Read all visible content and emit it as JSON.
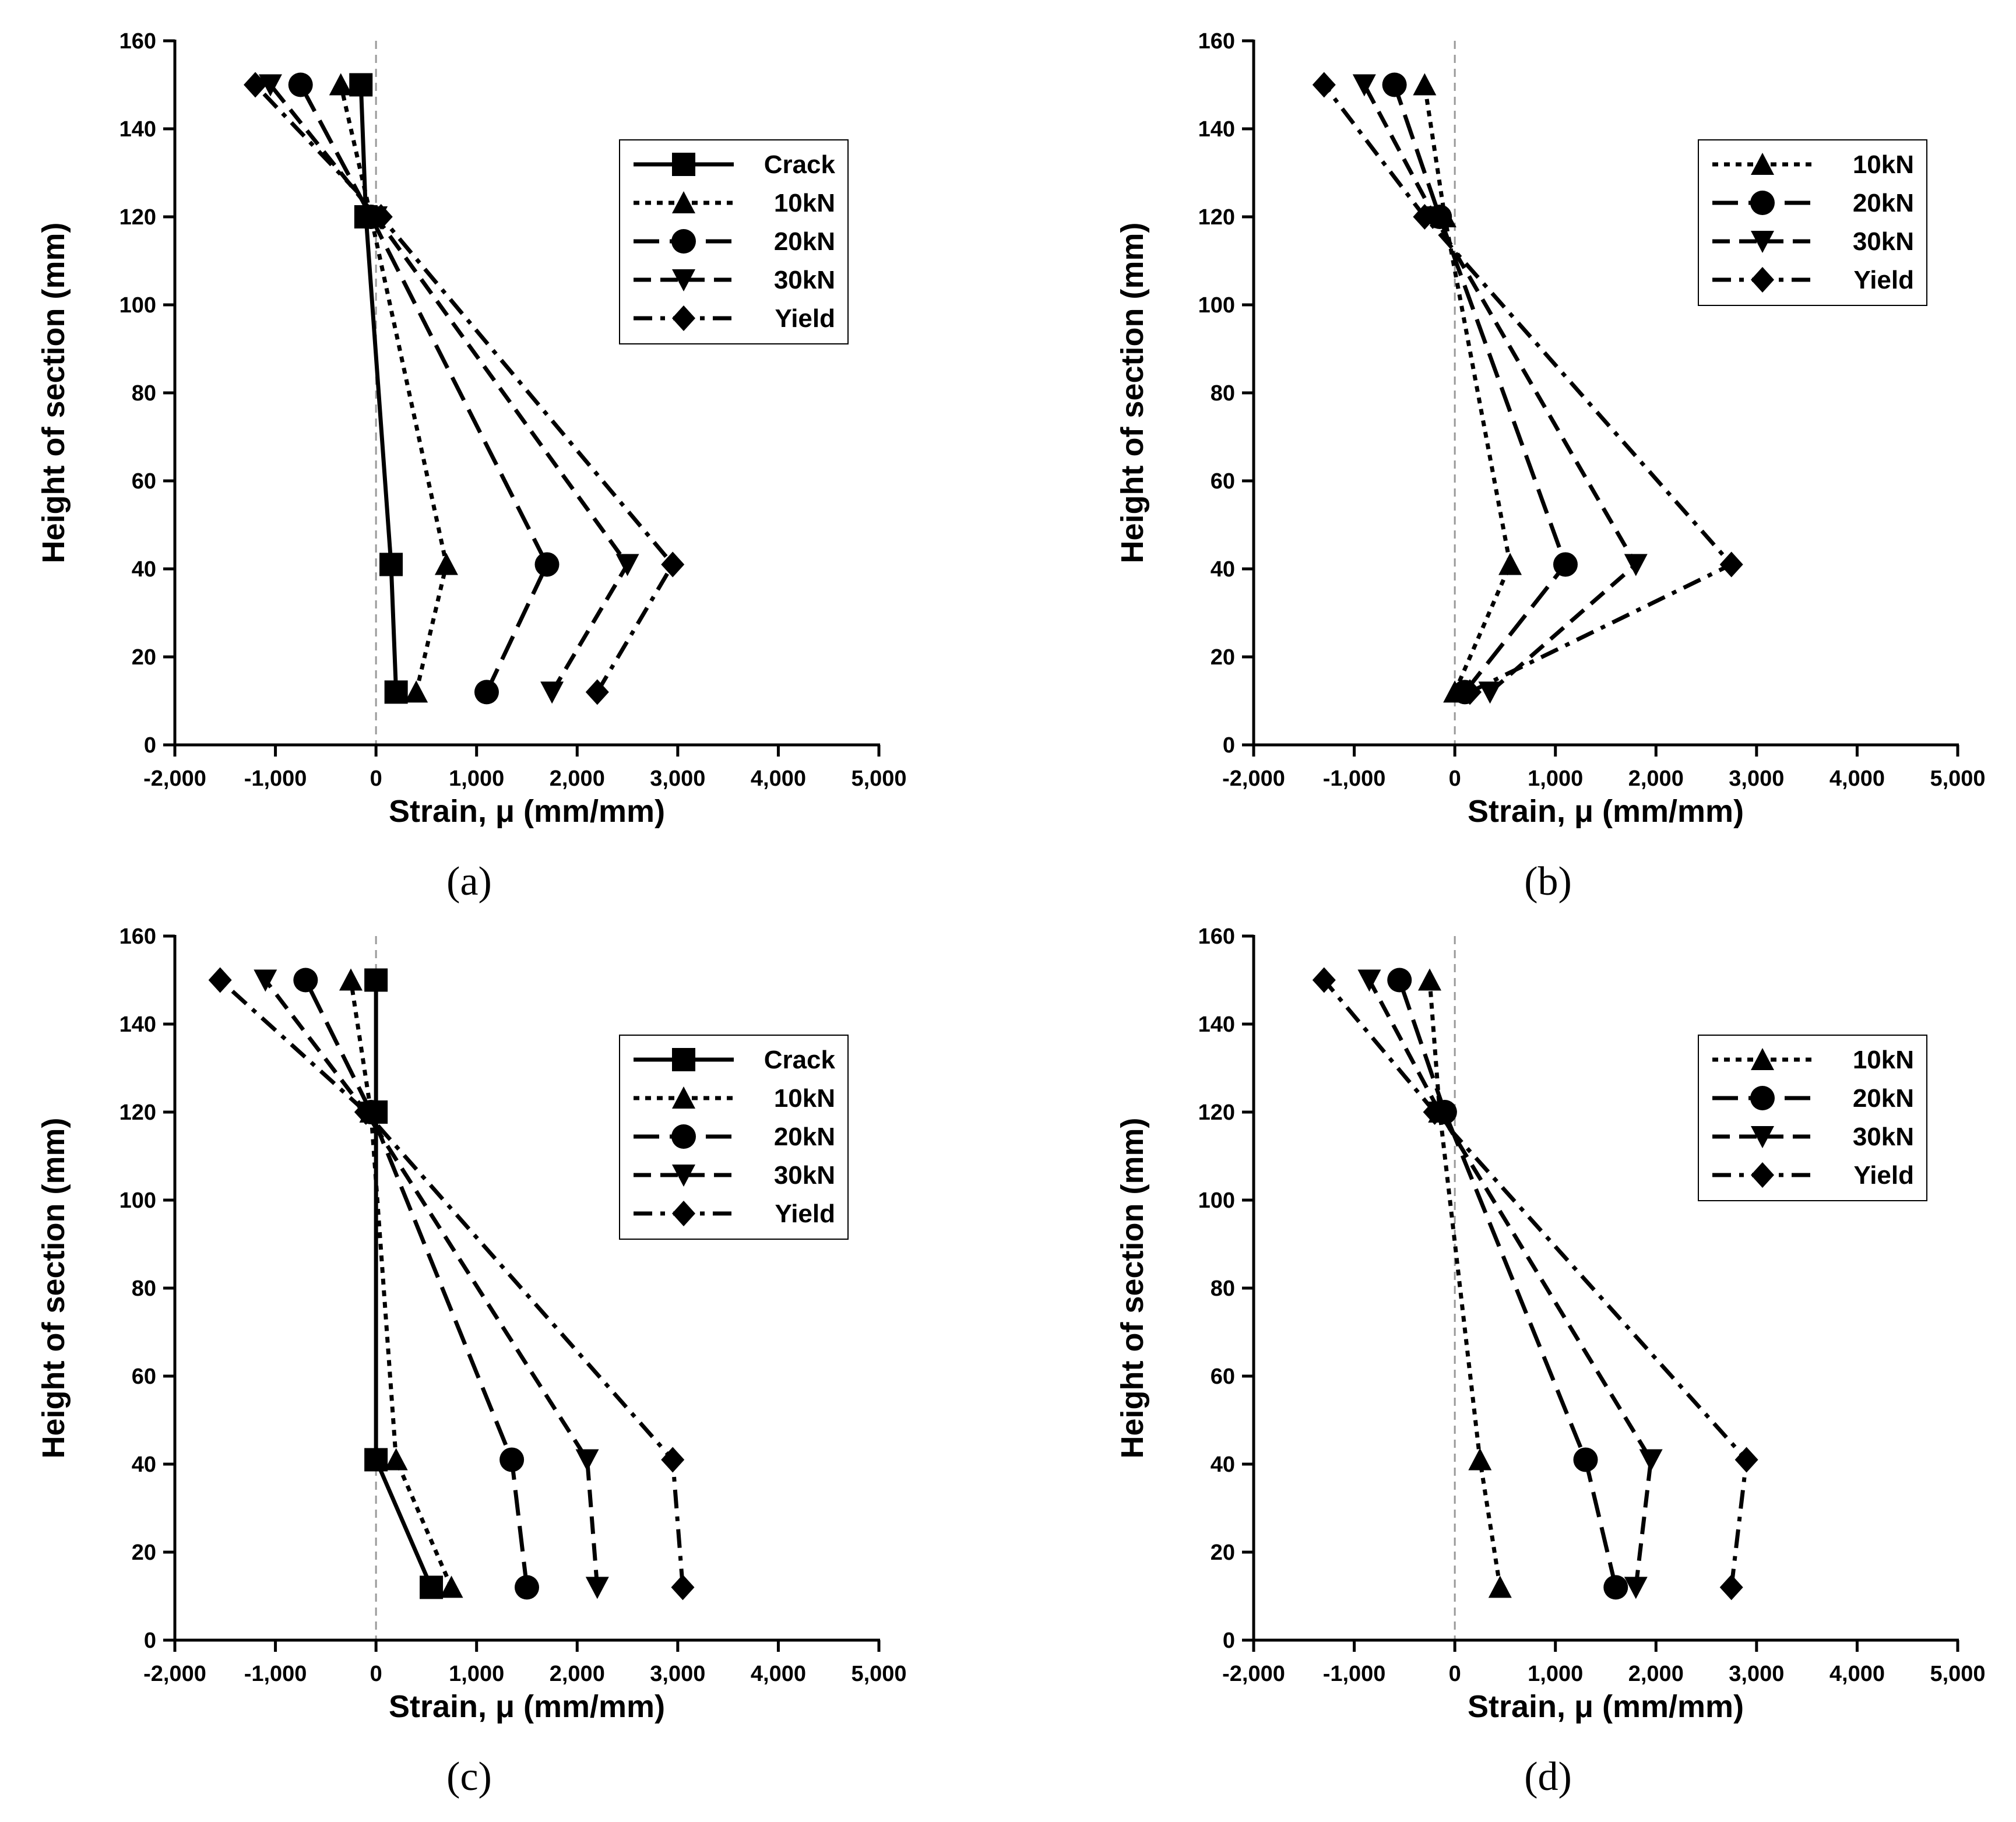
{
  "chart_data": [
    {
      "type": "line",
      "panel_label": "(a)",
      "xlabel": "Strain, μ (mm/mm)",
      "ylabel": "Height of section (mm)",
      "xlim": [
        -2000,
        5000
      ],
      "ylim": [
        0,
        160
      ],
      "xticks": [
        -2000,
        -1000,
        0,
        1000,
        2000,
        3000,
        4000,
        5000
      ],
      "xtick_labels": [
        "-2,000",
        "-1,000",
        "0",
        "1,000",
        "2,000",
        "3,000",
        "4,000",
        "5,000"
      ],
      "yticks": [
        0,
        20,
        40,
        60,
        80,
        100,
        120,
        140,
        160
      ],
      "ytick_labels": [
        "0",
        "20",
        "40",
        "60",
        "80",
        "100",
        "120",
        "140",
        "160"
      ],
      "zero_reference_line": true,
      "legend_position": "top-right",
      "series": [
        {
          "name": "Crack",
          "marker": "square",
          "dash": "solid",
          "x": [
            200,
            150,
            -100,
            -150
          ],
          "y": [
            12,
            41,
            120,
            150
          ]
        },
        {
          "name": "10kN",
          "marker": "triangle-up",
          "dash": "dot",
          "x": [
            400,
            700,
            -50,
            -350
          ],
          "y": [
            12,
            41,
            120,
            150
          ]
        },
        {
          "name": "20kN",
          "marker": "circle",
          "dash": "longdash",
          "x": [
            1100,
            1700,
            -50,
            -750
          ],
          "y": [
            12,
            41,
            120,
            150
          ]
        },
        {
          "name": "30kN",
          "marker": "triangle-down",
          "dash": "dash",
          "x": [
            1750,
            2500,
            0,
            -1050
          ],
          "y": [
            12,
            41,
            120,
            150
          ]
        },
        {
          "name": "Yield",
          "marker": "diamond",
          "dash": "dashdot",
          "x": [
            2200,
            2950,
            50,
            -1200
          ],
          "y": [
            12,
            41,
            120,
            150
          ]
        }
      ]
    },
    {
      "type": "line",
      "panel_label": "(b)",
      "xlabel": "Strain, μ (mm/mm)",
      "ylabel": "Height of section (mm)",
      "xlim": [
        -2000,
        5000
      ],
      "ylim": [
        0,
        160
      ],
      "xticks": [
        -2000,
        -1000,
        0,
        1000,
        2000,
        3000,
        4000,
        5000
      ],
      "xtick_labels": [
        "-2,000",
        "-1,000",
        "0",
        "1,000",
        "2,000",
        "3,000",
        "4,000",
        "5,000"
      ],
      "yticks": [
        0,
        20,
        40,
        60,
        80,
        100,
        120,
        140,
        160
      ],
      "ytick_labels": [
        "0",
        "20",
        "40",
        "60",
        "80",
        "100",
        "120",
        "140",
        "160"
      ],
      "zero_reference_line": true,
      "legend_position": "top-right",
      "series": [
        {
          "name": "10kN",
          "marker": "triangle-up",
          "dash": "dot",
          "x": [
            0,
            550,
            -100,
            -300
          ],
          "y": [
            12,
            41,
            120,
            150
          ]
        },
        {
          "name": "20kN",
          "marker": "circle",
          "dash": "longdash",
          "x": [
            100,
            1100,
            -150,
            -600
          ],
          "y": [
            12,
            41,
            120,
            150
          ]
        },
        {
          "name": "30kN",
          "marker": "triangle-down",
          "dash": "dash",
          "x": [
            350,
            1800,
            -200,
            -900
          ],
          "y": [
            12,
            41,
            120,
            150
          ]
        },
        {
          "name": "Yield",
          "marker": "diamond",
          "dash": "dashdot",
          "x": [
            150,
            2750,
            -300,
            -1300
          ],
          "y": [
            12,
            41,
            120,
            150
          ]
        }
      ]
    },
    {
      "type": "line",
      "panel_label": "(c)",
      "xlabel": "Strain, μ (mm/mm)",
      "ylabel": "Height of section (mm)",
      "xlim": [
        -2000,
        5000
      ],
      "ylim": [
        0,
        160
      ],
      "xticks": [
        -2000,
        -1000,
        0,
        1000,
        2000,
        3000,
        4000,
        5000
      ],
      "xtick_labels": [
        "-2,000",
        "-1,000",
        "0",
        "1,000",
        "2,000",
        "3,000",
        "4,000",
        "5,000"
      ],
      "yticks": [
        0,
        20,
        40,
        60,
        80,
        100,
        120,
        140,
        160
      ],
      "ytick_labels": [
        "0",
        "20",
        "40",
        "60",
        "80",
        "100",
        "120",
        "140",
        "160"
      ],
      "zero_reference_line": true,
      "legend_position": "center-right",
      "series": [
        {
          "name": "Crack",
          "marker": "square",
          "dash": "solid",
          "x": [
            550,
            0,
            0,
            0
          ],
          "y": [
            12,
            41,
            120,
            150
          ]
        },
        {
          "name": "10kN",
          "marker": "triangle-up",
          "dash": "dot",
          "x": [
            750,
            200,
            -50,
            -250
          ],
          "y": [
            12,
            41,
            120,
            150
          ]
        },
        {
          "name": "20kN",
          "marker": "circle",
          "dash": "longdash",
          "x": [
            1500,
            1350,
            -50,
            -700
          ],
          "y": [
            12,
            41,
            120,
            150
          ]
        },
        {
          "name": "30kN",
          "marker": "triangle-down",
          "dash": "dash",
          "x": [
            2200,
            2100,
            -100,
            -1100
          ],
          "y": [
            12,
            41,
            120,
            150
          ]
        },
        {
          "name": "Yield",
          "marker": "diamond",
          "dash": "dashdot",
          "x": [
            3050,
            2950,
            -100,
            -1550
          ],
          "y": [
            12,
            41,
            120,
            150
          ]
        }
      ]
    },
    {
      "type": "line",
      "panel_label": "(d)",
      "xlabel": "Strain, μ (mm/mm)",
      "ylabel": "Height of section (mm)",
      "xlim": [
        -2000,
        5000
      ],
      "ylim": [
        0,
        160
      ],
      "xticks": [
        -2000,
        -1000,
        0,
        1000,
        2000,
        3000,
        4000,
        5000
      ],
      "xtick_labels": [
        "-2,000",
        "-1,000",
        "0",
        "1,000",
        "2,000",
        "3,000",
        "4,000",
        "5,000"
      ],
      "yticks": [
        0,
        20,
        40,
        60,
        80,
        100,
        120,
        140,
        160
      ],
      "ytick_labels": [
        "0",
        "20",
        "40",
        "60",
        "80",
        "100",
        "120",
        "140",
        "160"
      ],
      "zero_reference_line": true,
      "legend_position": "center-right",
      "series": [
        {
          "name": "10kN",
          "marker": "triangle-up",
          "dash": "dot",
          "x": [
            450,
            250,
            -150,
            -250
          ],
          "y": [
            12,
            41,
            120,
            150
          ]
        },
        {
          "name": "20kN",
          "marker": "circle",
          "dash": "longdash",
          "x": [
            1600,
            1300,
            -100,
            -550
          ],
          "y": [
            12,
            41,
            120,
            150
          ]
        },
        {
          "name": "30kN",
          "marker": "triangle-down",
          "dash": "dash",
          "x": [
            1800,
            1950,
            -150,
            -850
          ],
          "y": [
            12,
            41,
            120,
            150
          ]
        },
        {
          "name": "Yield",
          "marker": "diamond",
          "dash": "dashdot",
          "x": [
            2750,
            2900,
            -200,
            -1300
          ],
          "y": [
            12,
            41,
            120,
            150
          ]
        }
      ]
    }
  ]
}
